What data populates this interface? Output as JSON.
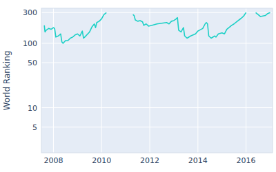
{
  "chart_data": {
    "type": "line",
    "y_label": "World Ranking",
    "x": [
      2007.62,
      2007.65,
      2007.7,
      2007.8,
      2007.9,
      2008.0,
      2008.05,
      2008.1,
      2008.2,
      2008.3,
      2008.35,
      2008.4,
      2008.5,
      2008.6,
      2008.7,
      2008.8,
      2008.9,
      2009.0,
      2009.1,
      2009.2,
      2009.25,
      2009.3,
      2009.5,
      2009.6,
      2009.7,
      2009.75,
      2009.8,
      2009.9,
      2010.0,
      2010.05,
      2010.1,
      2010.2,
      2010.7,
      2011.3,
      2011.35,
      2011.4,
      2011.5,
      2011.6,
      2011.7,
      2011.75,
      2011.85,
      2011.95,
      2012.1,
      2012.3,
      2012.5,
      2012.7,
      2012.8,
      2012.9,
      2013.0,
      2013.1,
      2013.15,
      2013.2,
      2013.3,
      2013.4,
      2013.45,
      2013.55,
      2013.7,
      2013.9,
      2014.0,
      2014.2,
      2014.3,
      2014.35,
      2014.4,
      2014.45,
      2014.55,
      2014.7,
      2014.75,
      2014.85,
      2015.0,
      2015.1,
      2015.2,
      2015.4,
      2015.5,
      2015.6,
      2015.8,
      2015.9,
      2016.0,
      2016.2,
      2016.4,
      2016.5,
      2016.6,
      2016.7,
      2016.8,
      2016.9,
      2017.0
    ],
    "series": [
      {
        "name": "World Ranking",
        "color": "#1cd0c6",
        "values": [
          190,
          150,
          160,
          170,
          165,
          175,
          170,
          125,
          130,
          140,
          105,
          100,
          110,
          110,
          120,
          125,
          135,
          140,
          130,
          155,
          120,
          125,
          150,
          180,
          200,
          175,
          210,
          220,
          240,
          260,
          280,
          300,
          null,
          280,
          270,
          230,
          220,
          225,
          215,
          190,
          200,
          185,
          190,
          200,
          205,
          210,
          200,
          220,
          225,
          240,
          250,
          160,
          150,
          175,
          130,
          120,
          130,
          140,
          155,
          170,
          200,
          210,
          200,
          130,
          120,
          130,
          125,
          140,
          145,
          140,
          165,
          190,
          200,
          215,
          245,
          265,
          300,
          null,
          300,
          280,
          260,
          265,
          270,
          290,
          300
        ]
      }
    ],
    "xlim": [
      2007.5,
      2017.1
    ],
    "xticks": [
      2008,
      2010,
      2012,
      2014,
      2016
    ],
    "ylim": [
      2,
      350
    ],
    "yticks": [
      5,
      10,
      50,
      100,
      300
    ],
    "log": "y",
    "grid": true
  }
}
